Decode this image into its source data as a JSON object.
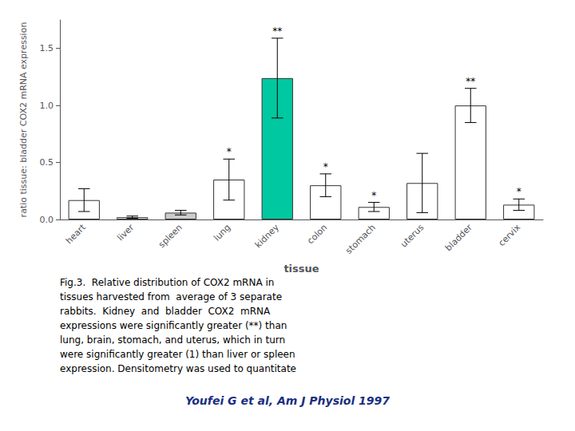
{
  "chart_data": {
    "type": "bar",
    "categories": [
      "heart",
      "liver",
      "spleen",
      "lung",
      "kidney",
      "colon",
      "stomach",
      "uterus",
      "bladder",
      "cervix"
    ],
    "values": [
      0.17,
      0.02,
      0.06,
      0.35,
      1.24,
      0.3,
      0.11,
      0.32,
      1.0,
      0.13
    ],
    "errors": [
      0.1,
      0.01,
      0.02,
      0.18,
      0.35,
      0.1,
      0.04,
      0.26,
      0.15,
      0.05
    ],
    "colors": [
      "#ffffff",
      "#ffffff",
      "#cccccc",
      "#ffffff",
      "#00c8a0",
      "#ffffff",
      "#ffffff",
      "#ffffff",
      "#ffffff",
      "#ffffff"
    ],
    "annotations": [
      null,
      null,
      null,
      "*",
      "**",
      "*",
      "*",
      null,
      "**",
      "*"
    ],
    "xlabel": "tissue",
    "ylabel": "ratio tissue: bladder COX2 mRNA expression",
    "ylim": [
      0.0,
      1.75
    ],
    "yticks": [
      {
        "value": 0.0,
        "label": "0.0"
      },
      0.5,
      {
        "value": 1.0,
        "label": "1.0"
      },
      1.5
    ],
    "grid": false,
    "caption": "Fig.3.  Relative distribution of COX2 mRNA in\ntissues harvested from  average of 3 separate\nrabbits.  Kidney  and  bladder  COX2  mRNA\nexpressions were significantly greater (**) than\nlung, brain, stomach, and uterus, which in turn\nwere significantly greater (1) than liver or spleen\nexpression. Densitometry was used to quantitate",
    "attribution": "Youfei G et al, Am J Physiol 1997"
  }
}
